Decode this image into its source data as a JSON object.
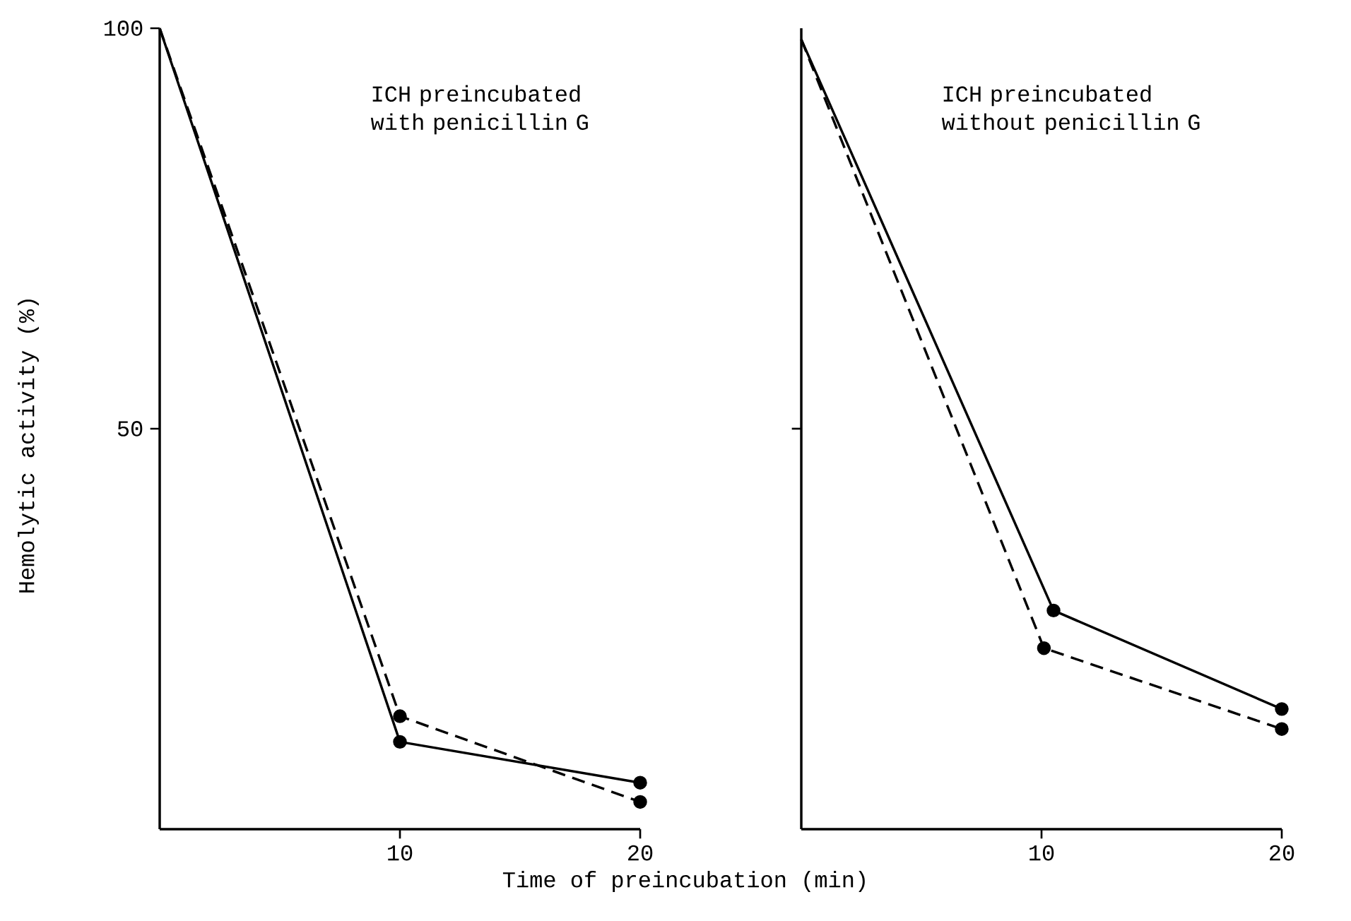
{
  "chart_data": [
    {
      "type": "line",
      "xlabel": "Time of preincubation (min)",
      "ylabel": "Hemolytic activity (%)",
      "annotations": [
        "ICH preincubated with penicillin G"
      ],
      "xlim": [
        0,
        20
      ],
      "ylim": [
        0,
        100
      ],
      "xticks": [
        10,
        20
      ],
      "yticks": [
        50,
        100
      ],
      "marker": "circle",
      "grid": false,
      "series": [
        {
          "x": [
            0,
            10,
            20
          ],
          "values": [
            100,
            10.9,
            5.8
          ],
          "color": "#000000",
          "line_style": "solid"
        },
        {
          "x": [
            0,
            10,
            20
          ],
          "values": [
            100,
            14.1,
            3.4
          ],
          "color": "#000000",
          "line_style": "dashed"
        }
      ]
    },
    {
      "type": "line",
      "annotations": [
        "ICH preincubated without penicillin G"
      ],
      "xlim": [
        0,
        20
      ],
      "ylim": [
        0,
        100
      ],
      "xticks": [
        10,
        20
      ],
      "yticks": [
        {
          "value": 50,
          "label": null
        }
      ],
      "tick_labels": "x",
      "marker": "circle",
      "grid": false,
      "series": [
        {
          "x": [
            0,
            10.5,
            20
          ],
          "values": [
            98.6,
            27.3,
            15.0
          ],
          "color": "#000000",
          "line_style": "solid"
        },
        {
          "x": [
            0,
            10.1,
            20
          ],
          "values": [
            98.6,
            22.6,
            12.5
          ],
          "color": "#000000",
          "line_style": "dashed"
        }
      ]
    }
  ]
}
